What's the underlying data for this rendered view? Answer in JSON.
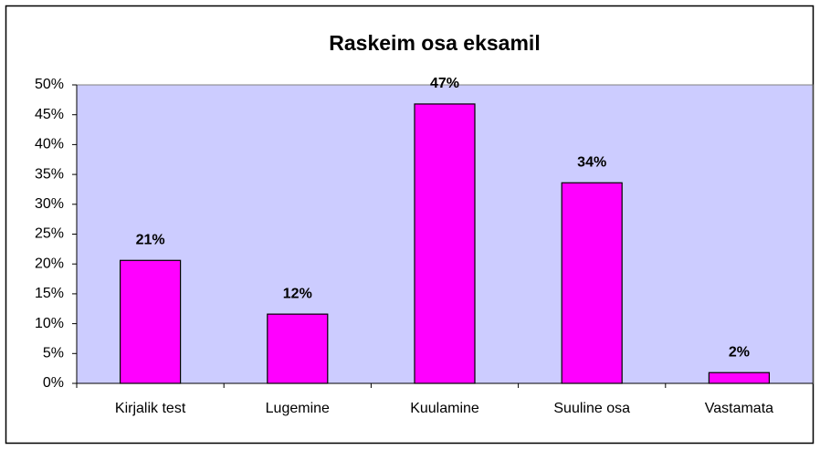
{
  "chart_data": {
    "type": "bar",
    "title": "Raskeim osa eksamil",
    "categories": [
      "Kirjalik test",
      "Lugemine",
      "Kuulamine",
      "Suuline osa",
      "Vastamata"
    ],
    "values": [
      20.6,
      11.6,
      46.8,
      33.6,
      1.8
    ],
    "value_labels": [
      "21%",
      "12%",
      "47%",
      "34%",
      "2%"
    ],
    "color": "#ff00ff",
    "ylim": [
      0,
      50
    ],
    "yticks": [
      {
        "value": 0,
        "label": "0%"
      },
      {
        "value": 5,
        "label": "5%"
      },
      {
        "value": 10,
        "label": "10%"
      },
      {
        "value": 15,
        "label": "15%"
      },
      {
        "value": 20,
        "label": "20%"
      },
      {
        "value": 25,
        "label": "25%"
      },
      {
        "value": 30,
        "label": "30%"
      },
      {
        "value": 35,
        "label": "35%"
      },
      {
        "value": 40,
        "label": "40%"
      },
      {
        "value": 45,
        "label": "45%"
      },
      {
        "value": 50,
        "label": "50%"
      }
    ],
    "grid": false
  }
}
